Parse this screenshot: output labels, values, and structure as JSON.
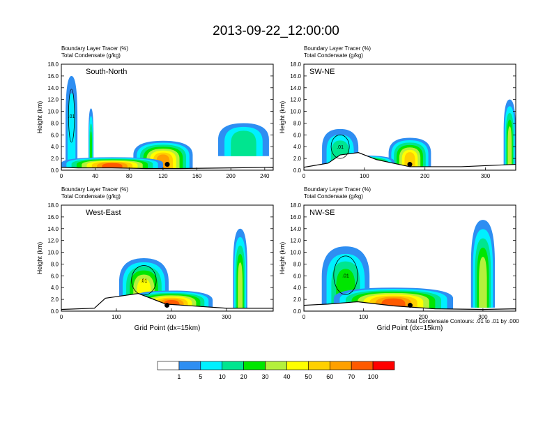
{
  "title": "2013-09-22_12:00:00",
  "field_labels": [
    "Boundary Layer Tracer   (%)",
    "Total Condensate   (g/kg)"
  ],
  "y_axis_label": "Height (km)",
  "x_axis_label": "Grid Point (dx=15km)",
  "contour_note": "Total Condensate Contours: .01 to .01 by .000",
  "contour_label": ".01",
  "colors": [
    "#ffffff",
    "#2e8ef2",
    "#00f0ff",
    "#00e58f",
    "#00e600",
    "#b4f03c",
    "#ffff00",
    "#ffd000",
    "#ffa000",
    "#ff5a00",
    "#ff0000"
  ],
  "colorbar": {
    "labels": [
      "1",
      "5",
      "10",
      "20",
      "30",
      "40",
      "50",
      "60",
      "70",
      "100"
    ]
  },
  "chart_data": [
    {
      "type": "heatmap",
      "panel_label": "South-North",
      "xlim": [
        0,
        250
      ],
      "ylim": [
        0,
        18
      ],
      "xticks": [
        "0",
        "40",
        "80",
        "120",
        "160",
        "200",
        "240"
      ],
      "yticks": [
        "0.0",
        "2.0",
        "4.0",
        "6.0",
        "8.0",
        "10.0",
        "12.0",
        "14.0",
        "16.0",
        "18.0"
      ],
      "marker_x": 125,
      "marker_y_km": 1.0
    },
    {
      "type": "heatmap",
      "panel_label": "SW-NE",
      "xlim": [
        0,
        350
      ],
      "ylim": [
        0,
        18
      ],
      "xticks": [
        "0",
        "100",
        "200",
        "300"
      ],
      "yticks": [
        "0.0",
        "2.0",
        "4.0",
        "6.0",
        "8.0",
        "10.0",
        "12.0",
        "14.0",
        "16.0",
        "18.0"
      ],
      "marker_x": 175,
      "marker_y_km": 1.0
    },
    {
      "type": "heatmap",
      "panel_label": "West-East",
      "xlim": [
        0,
        385
      ],
      "ylim": [
        0,
        18
      ],
      "xticks": [
        "0",
        "100",
        "200",
        "300"
      ],
      "yticks": [
        "0.0",
        "2.0",
        "4.0",
        "6.0",
        "8.0",
        "10.0",
        "12.0",
        "14.0",
        "16.0",
        "18.0"
      ],
      "marker_x": 192,
      "marker_y_km": 1.0
    },
    {
      "type": "heatmap",
      "panel_label": "NW-SE",
      "xlim": [
        0,
        355
      ],
      "ylim": [
        0,
        18
      ],
      "xticks": [
        "0",
        "100",
        "200",
        "300"
      ],
      "yticks": [
        "0.0",
        "2.0",
        "4.0",
        "6.0",
        "8.0",
        "10.0",
        "12.0",
        "14.0",
        "16.0",
        "18.0"
      ],
      "marker_x": 178,
      "marker_y_km": 1.0
    }
  ]
}
